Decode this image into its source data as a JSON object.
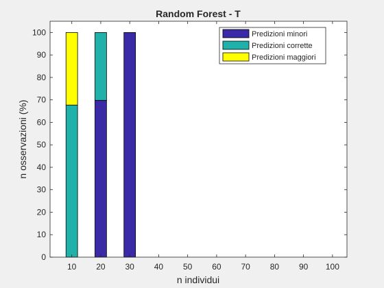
{
  "chart_data": {
    "type": "bar",
    "stacked": true,
    "title": "Random Forest - T",
    "xlabel": "n individui",
    "ylabel": "n osservazioni (%)",
    "x": [
      10,
      20,
      30
    ],
    "xticks": [
      "10",
      "20",
      "30",
      "40",
      "50",
      "60",
      "70",
      "80",
      "90",
      "100"
    ],
    "xlim": [
      2.5,
      105
    ],
    "ylim": [
      0,
      105
    ],
    "yticks": [
      "0",
      "10",
      "20",
      "30",
      "40",
      "50",
      "60",
      "70",
      "80",
      "90",
      "100"
    ],
    "grid": false,
    "legend_position": "top-right",
    "series": [
      {
        "name": "Predizioni minori",
        "color": "#3a2aa8",
        "values": [
          0,
          69.8,
          100
        ]
      },
      {
        "name": "Predizioni corrette",
        "color": "#20b2aa",
        "values": [
          67.7,
          30.2,
          0
        ]
      },
      {
        "name": "Predizioni maggiori",
        "color": "#ffff00",
        "values": [
          32.3,
          0,
          0
        ]
      }
    ]
  }
}
